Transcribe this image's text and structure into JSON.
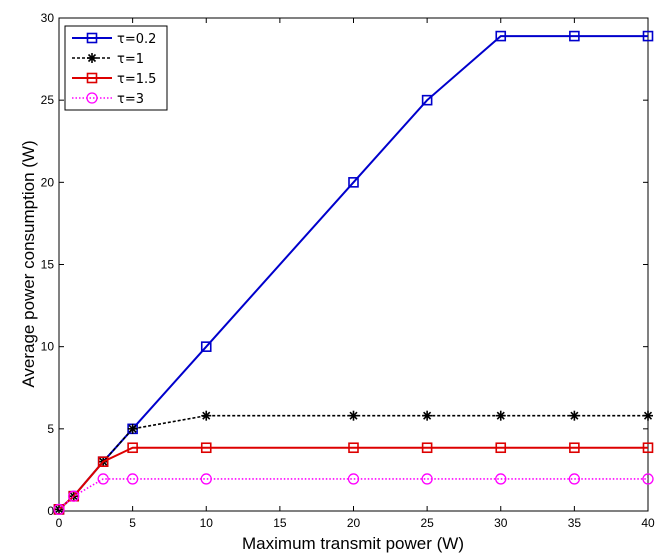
{
  "chart_data": {
    "type": "line",
    "title": "",
    "xlabel": "Maximum transmit power (W)",
    "ylabel": "Average power consumption (W)",
    "xlim": [
      0,
      40
    ],
    "ylim": [
      0,
      30
    ],
    "xticks": [
      0,
      5,
      10,
      15,
      20,
      25,
      30,
      35,
      40
    ],
    "yticks": [
      0,
      5,
      10,
      15,
      20,
      25,
      30
    ],
    "grid": false,
    "legend_position": "top-left",
    "x": [
      0,
      1,
      3,
      5,
      10,
      20,
      25,
      30,
      35,
      40
    ],
    "series": [
      {
        "name": "τ=0.2",
        "color": "#0000cc",
        "line_style": "solid",
        "marker": "square",
        "values": [
          0.1,
          0.9,
          3.0,
          5.0,
          10.0,
          20.0,
          25.0,
          28.9,
          28.9,
          28.9
        ]
      },
      {
        "name": "τ=1",
        "color": "#000000",
        "line_style": "dotted",
        "marker": "asterisk",
        "values": [
          0.1,
          0.9,
          3.0,
          5.0,
          5.8,
          5.8,
          5.8,
          5.8,
          5.8,
          5.8
        ]
      },
      {
        "name": "τ=1.5",
        "color": "#dd0000",
        "line_style": "solid",
        "marker": "square",
        "values": [
          0.1,
          0.9,
          3.0,
          3.85,
          3.85,
          3.85,
          3.85,
          3.85,
          3.85,
          3.85
        ]
      },
      {
        "name": "τ=3",
        "color": "#ff00ff",
        "line_style": "dotted-fine",
        "marker": "circle",
        "values": [
          0.1,
          0.9,
          1.95,
          1.95,
          1.95,
          1.95,
          1.95,
          1.95,
          1.95,
          1.95
        ]
      }
    ]
  }
}
